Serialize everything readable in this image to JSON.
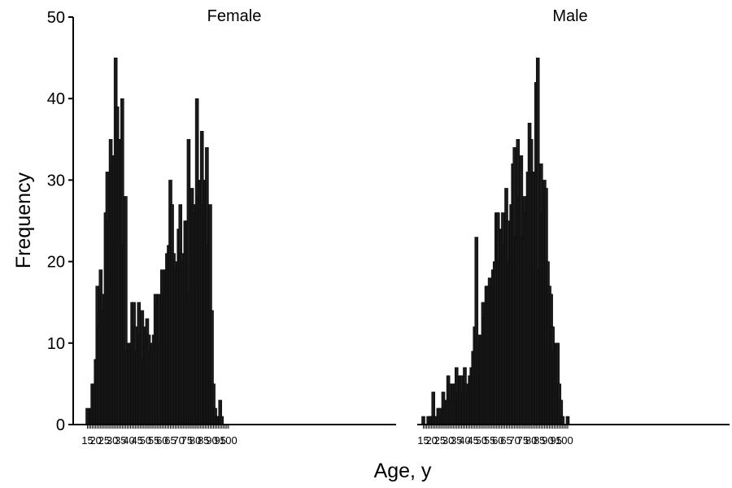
{
  "chart_data": {
    "type": "bar",
    "ylabel": "Frequency",
    "xlabel": "Age, y",
    "ylim": [
      0,
      50
    ],
    "yticks": [
      "0",
      "10",
      "20",
      "30",
      "40",
      "50"
    ],
    "xticks": [
      "15",
      "20",
      "25",
      "30",
      "35",
      "40",
      "45",
      "50",
      "55",
      "60",
      "65",
      "70",
      "75",
      "80",
      "85",
      "90",
      "95",
      "100"
    ],
    "bar_color": "#1a1a1a",
    "panels": [
      {
        "name": "Female",
        "x_start": 15,
        "values": [
          2,
          0,
          2,
          5,
          5,
          8,
          17,
          12,
          19,
          16,
          14,
          26,
          31,
          25,
          35,
          32,
          33,
          45,
          39,
          35,
          35,
          40,
          22,
          28,
          9,
          10,
          10,
          15,
          15,
          12,
          9,
          15,
          11,
          14,
          8,
          12,
          13,
          11,
          9,
          10,
          11,
          16,
          15,
          16,
          10,
          19,
          16,
          19,
          21,
          22,
          30,
          27,
          21,
          20,
          19,
          24,
          27,
          21,
          20,
          25,
          25,
          35,
          16,
          29,
          27,
          26,
          40,
          28,
          30,
          36,
          27,
          30,
          34,
          22,
          27,
          14,
          5,
          2,
          1,
          1,
          3,
          1
        ],
        "title": "Female"
      },
      {
        "name": "Male",
        "x_start": 15,
        "values": [
          1,
          0,
          0,
          1,
          1,
          1,
          4,
          1,
          1,
          2,
          2,
          1,
          4,
          2,
          3,
          6,
          5,
          3,
          5,
          5,
          7,
          4,
          6,
          6,
          4,
          7,
          5,
          4,
          6,
          7,
          9,
          12,
          23,
          11,
          10,
          11,
          15,
          13,
          17,
          17,
          18,
          17,
          19,
          20,
          26,
          26,
          20,
          24,
          26,
          22,
          29,
          25,
          20,
          27,
          32,
          34,
          23,
          35,
          28,
          33,
          23,
          28,
          26,
          31,
          37,
          35,
          31,
          31,
          42,
          45,
          19,
          32,
          26,
          30,
          29,
          20,
          17,
          16,
          12,
          9,
          10,
          10,
          5,
          3,
          1,
          0,
          0,
          1
        ],
        "title": "Male"
      }
    ]
  }
}
